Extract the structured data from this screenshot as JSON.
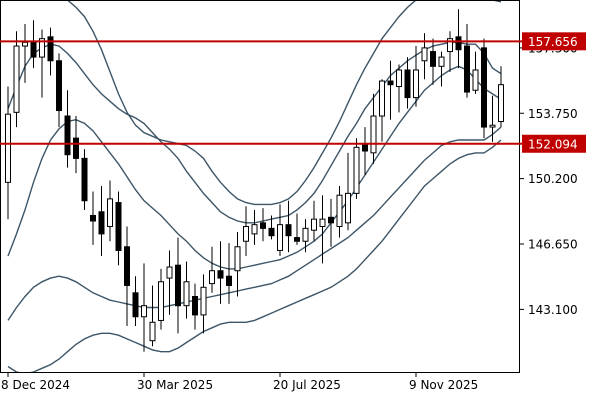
{
  "chart_data": {
    "type": "candlestick",
    "title": "",
    "colors": {
      "bull_body": "#ffffff",
      "bear_body": "#000000",
      "candle_outline": "#000000",
      "band_line": "#3d5566",
      "level_line": "#c00000",
      "level_tag_bg": "#c00000",
      "level_tag_text": "#ffffff",
      "axis": "#000000"
    },
    "y_axis": {
      "ticks": [
        157.3,
        153.75,
        150.2,
        146.65,
        143.1
      ],
      "tick_labels": [
        "157.300",
        "153.750",
        "150.200",
        "146.650",
        "143.100"
      ],
      "range": [
        139.7,
        159.9
      ]
    },
    "x_axis": {
      "tick_labels": [
        "8 Dec 2024",
        "30 Mar 2025",
        "20 Jul 2025",
        "9 Nov 2025"
      ],
      "tick_bar_index": [
        0,
        16,
        32,
        48
      ]
    },
    "levels": [
      {
        "value": 157.656,
        "label": "157.656"
      },
      {
        "value": 152.094,
        "label": "152.094"
      }
    ],
    "candles": [
      [
        150.0,
        155.2,
        148.0,
        153.7
      ],
      [
        153.8,
        158.2,
        153.0,
        157.4
      ],
      [
        157.4,
        158.6,
        155.4,
        157.6
      ],
      [
        157.6,
        158.8,
        156.2,
        156.8
      ],
      [
        156.8,
        158.3,
        154.6,
        157.8
      ],
      [
        157.9,
        158.4,
        155.8,
        156.6
      ],
      [
        156.6,
        157.0,
        153.0,
        153.9
      ],
      [
        153.6,
        155.0,
        150.8,
        151.5
      ],
      [
        152.4,
        153.6,
        150.5,
        151.3
      ],
      [
        151.3,
        151.8,
        148.5,
        149.0
      ],
      [
        148.2,
        149.5,
        146.6,
        147.9
      ],
      [
        148.4,
        149.8,
        146.0,
        147.2
      ],
      [
        147.6,
        150.1,
        146.8,
        149.1
      ],
      [
        148.9,
        149.5,
        145.5,
        146.3
      ],
      [
        146.5,
        147.6,
        142.2,
        144.4
      ],
      [
        144.0,
        144.9,
        142.2,
        142.7
      ],
      [
        142.7,
        145.6,
        140.8,
        143.3
      ],
      [
        141.4,
        144.4,
        141.1,
        142.4
      ],
      [
        142.5,
        145.3,
        142.0,
        144.6
      ],
      [
        144.8,
        146.3,
        142.8,
        145.4
      ],
      [
        145.5,
        147.0,
        141.8,
        143.3
      ],
      [
        143.3,
        145.7,
        142.6,
        144.6
      ],
      [
        143.8,
        144.5,
        142.0,
        142.8
      ],
      [
        142.8,
        145.0,
        141.8,
        144.3
      ],
      [
        144.5,
        146.5,
        144.0,
        145.2
      ],
      [
        145.2,
        146.8,
        143.4,
        144.8
      ],
      [
        144.9,
        146.7,
        143.4,
        144.4
      ],
      [
        145.2,
        147.3,
        143.8,
        146.5
      ],
      [
        146.8,
        148.7,
        146.0,
        147.6
      ],
      [
        147.2,
        148.5,
        146.6,
        147.7
      ],
      [
        147.8,
        148.6,
        146.8,
        147.5
      ],
      [
        147.5,
        148.2,
        146.9,
        147.1
      ],
      [
        146.3,
        148.8,
        146.0,
        147.7
      ],
      [
        147.7,
        149.0,
        146.2,
        147.1
      ],
      [
        147.0,
        148.3,
        146.6,
        146.8
      ],
      [
        146.8,
        148.0,
        146.2,
        147.5
      ],
      [
        147.4,
        149.0,
        146.8,
        148.0
      ],
      [
        147.6,
        149.3,
        145.6,
        148.0
      ],
      [
        148.1,
        149.1,
        146.5,
        147.8
      ],
      [
        147.6,
        149.8,
        147.0,
        149.3
      ],
      [
        147.8,
        151.6,
        147.4,
        149.4
      ],
      [
        149.4,
        152.4,
        149.1,
        151.9
      ],
      [
        152.1,
        153.0,
        150.4,
        151.7
      ],
      [
        151.6,
        154.8,
        151.0,
        153.6
      ],
      [
        153.6,
        155.6,
        152.2,
        155.5
      ],
      [
        155.5,
        156.6,
        153.4,
        155.3
      ],
      [
        155.2,
        156.4,
        153.8,
        156.1
      ],
      [
        156.1,
        156.8,
        154.0,
        154.6
      ],
      [
        154.6,
        157.4,
        154.1,
        156.1
      ],
      [
        156.6,
        158.1,
        155.6,
        157.3
      ],
      [
        157.1,
        157.8,
        155.3,
        156.3
      ],
      [
        156.3,
        157.1,
        155.2,
        156.8
      ],
      [
        157.1,
        158.2,
        156.0,
        157.8
      ],
      [
        157.9,
        159.4,
        156.2,
        157.2
      ],
      [
        157.4,
        158.6,
        154.6,
        154.9
      ],
      [
        155.0,
        157.1,
        154.8,
        156.1
      ],
      [
        157.3,
        157.8,
        152.4,
        153.0
      ],
      [
        153.0,
        154.7,
        152.2,
        153.1
      ],
      [
        153.3,
        156.3,
        153.0,
        155.3
      ]
    ],
    "bands": {
      "outer_upper": [
        163.0,
        162.5,
        161.8,
        161.2,
        160.8,
        160.5,
        160.2,
        159.9,
        159.5,
        159.0,
        158.2,
        157.2,
        156.0,
        154.8,
        153.8,
        153.1,
        152.7,
        152.5,
        152.3,
        152.2,
        152.1,
        152.0,
        151.7,
        151.3,
        150.6,
        150.0,
        149.5,
        149.1,
        148.9,
        148.8,
        148.8,
        148.8,
        148.9,
        149.1,
        149.5,
        150.1,
        150.8,
        151.6,
        152.4,
        153.3,
        154.3,
        155.3,
        156.2,
        157.0,
        157.8,
        158.4,
        159.0,
        159.5,
        159.9,
        160.2,
        160.4,
        160.5,
        160.5,
        160.5,
        160.4,
        160.2,
        160.0,
        159.9,
        159.8
      ],
      "inner_upper": [
        154.0,
        155.2,
        156.3,
        157.0,
        157.3,
        157.5,
        157.4,
        157.0,
        156.5,
        155.9,
        155.3,
        154.8,
        154.4,
        154.0,
        153.7,
        153.5,
        153.2,
        152.7,
        152.2,
        151.8,
        151.3,
        150.6,
        150.0,
        149.4,
        148.9,
        148.4,
        148.1,
        147.9,
        147.8,
        147.8,
        147.9,
        148.0,
        148.1,
        148.2,
        148.5,
        148.9,
        149.4,
        150.1,
        150.9,
        151.7,
        152.5,
        153.2,
        154.0,
        154.6,
        155.2,
        155.8,
        156.2,
        156.6,
        156.9,
        157.2,
        157.4,
        157.5,
        157.6,
        157.6,
        157.5,
        157.5,
        157.0,
        156.2,
        155.9
      ],
      "middle": [
        146.0,
        147.2,
        148.5,
        150.0,
        151.3,
        152.3,
        152.9,
        153.3,
        153.4,
        153.2,
        152.8,
        152.2,
        151.6,
        151.0,
        150.3,
        149.6,
        149.0,
        148.6,
        148.2,
        147.7,
        147.2,
        146.8,
        146.3,
        145.9,
        145.6,
        145.4,
        145.3,
        145.3,
        145.4,
        145.5,
        145.6,
        145.7,
        145.8,
        146.0,
        146.2,
        146.5,
        146.8,
        147.2,
        147.8,
        148.4,
        149.0,
        149.7,
        150.4,
        151.1,
        151.8,
        152.5,
        153.2,
        153.8,
        154.4,
        155.0,
        155.4,
        155.8,
        156.1,
        156.3,
        156.1,
        155.6,
        155.1,
        154.8,
        154.5
      ],
      "inner_lower": [
        142.5,
        143.2,
        143.8,
        144.3,
        144.6,
        144.8,
        144.9,
        144.8,
        144.6,
        144.3,
        144.0,
        143.8,
        143.6,
        143.5,
        143.4,
        143.3,
        143.2,
        143.2,
        143.2,
        143.3,
        143.4,
        143.5,
        143.6,
        143.7,
        143.8,
        143.9,
        144.0,
        144.1,
        144.2,
        144.3,
        144.4,
        144.5,
        144.7,
        144.9,
        145.2,
        145.5,
        145.8,
        146.1,
        146.4,
        146.7,
        147.0,
        147.4,
        147.8,
        148.2,
        148.7,
        149.2,
        149.7,
        150.2,
        150.7,
        151.2,
        151.6,
        152.0,
        152.2,
        152.3,
        152.3,
        152.3,
        152.3,
        152.6,
        153.0
      ],
      "outer_lower": [
        140.0,
        139.7,
        139.6,
        139.7,
        139.9,
        140.1,
        140.4,
        140.8,
        141.2,
        141.5,
        141.7,
        141.8,
        141.8,
        141.7,
        141.5,
        141.3,
        141.1,
        140.9,
        140.8,
        140.8,
        141.0,
        141.3,
        141.6,
        141.9,
        142.1,
        142.3,
        142.4,
        142.4,
        142.4,
        142.5,
        142.7,
        142.9,
        143.1,
        143.3,
        143.5,
        143.7,
        143.9,
        144.1,
        144.3,
        144.6,
        144.9,
        145.3,
        145.8,
        146.3,
        146.8,
        147.4,
        148.0,
        148.6,
        149.2,
        149.8,
        150.2,
        150.6,
        151.0,
        151.3,
        151.5,
        151.6,
        151.6,
        151.9,
        152.3
      ]
    }
  }
}
